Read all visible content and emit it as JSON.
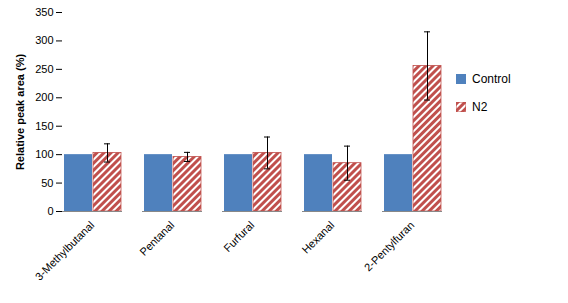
{
  "chart_data": {
    "type": "bar",
    "y_label": "Relative peak area (%)",
    "categories": [
      "3-Methylbutanal",
      "Pentanal",
      "Furfural",
      "Hexanal",
      "2-Pentylfuran"
    ],
    "series": [
      {
        "name": "Control",
        "color": "#4f81bd",
        "values": [
          100,
          100,
          100,
          100,
          100
        ]
      },
      {
        "name": "N2",
        "color": "#c0504d",
        "values": [
          103,
          96,
          103,
          85,
          256
        ],
        "errors": [
          16,
          8,
          28,
          30,
          60
        ]
      }
    ],
    "ylim": [
      0,
      350
    ],
    "yticks": [
      0,
      50,
      100,
      150,
      200,
      250,
      300,
      350
    ],
    "grid": false,
    "legend": "right"
  }
}
